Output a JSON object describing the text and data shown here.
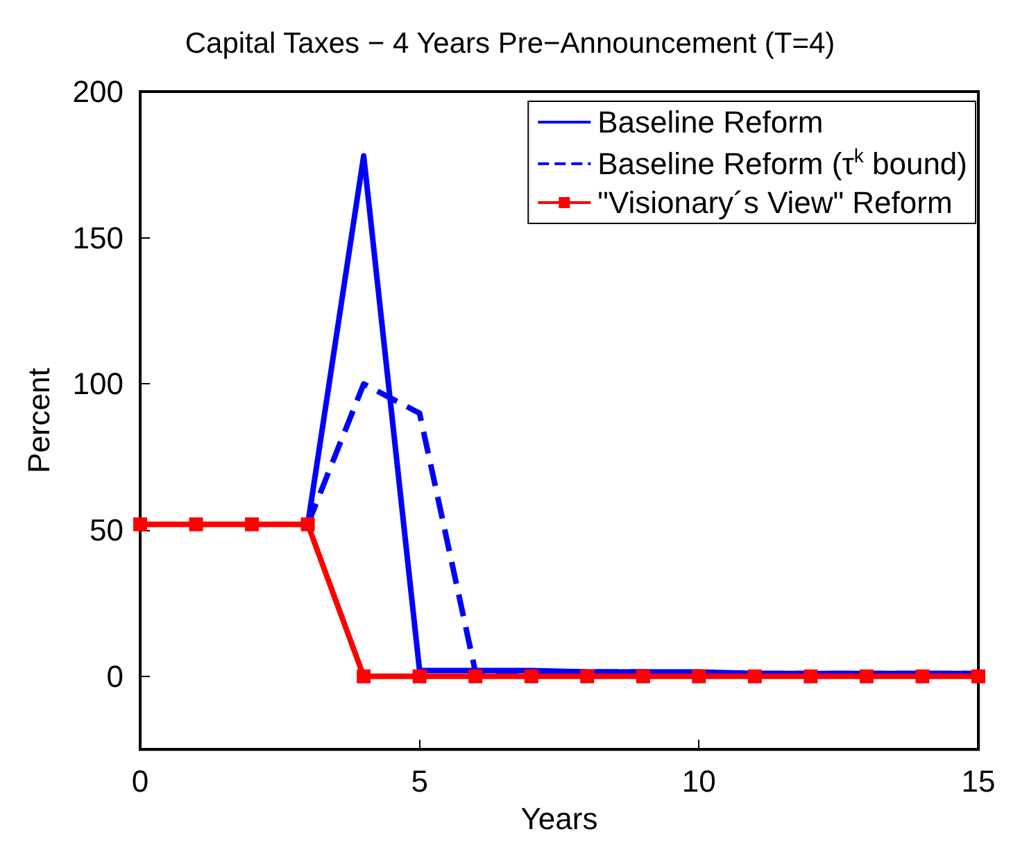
{
  "chart_data": {
    "type": "line",
    "title": "Capital Taxes − 4 Years Pre−Announcement (T=4)",
    "xlabel": "Years",
    "ylabel": "Percent",
    "xlim": [
      0,
      15
    ],
    "ylim": [
      -25,
      200
    ],
    "xticks": [
      0,
      5,
      10,
      15
    ],
    "yticks": [
      0,
      50,
      100,
      150,
      200
    ],
    "grid": false,
    "legend": "top right",
    "x": [
      0,
      1,
      2,
      3,
      4,
      5,
      6,
      7,
      8,
      9,
      10,
      11,
      12,
      13,
      14,
      15
    ],
    "series": [
      {
        "name": "Baseline Reform",
        "color": "#0000ff",
        "line_style": "solid",
        "marker": "none",
        "values": [
          null,
          null,
          null,
          52,
          178,
          2,
          2,
          2,
          1.5,
          1.5,
          1.5,
          1,
          1,
          1,
          1,
          1
        ]
      },
      {
        "name": "Baseline Reform (τ$^{k}$ bound)",
        "color": "#0000ff",
        "line_style": "dashed",
        "marker": "none",
        "values": [
          null,
          null,
          null,
          52,
          100,
          90,
          1.5,
          1.5,
          1.5,
          1.5,
          1,
          1,
          1,
          1,
          1,
          1
        ]
      },
      {
        "name": "\"Visionary´s View\" Reform",
        "color": "#ff0000",
        "line_style": "solid",
        "marker": "square",
        "values": [
          52,
          52,
          52,
          52,
          0,
          0,
          0,
          0,
          0,
          0,
          0,
          0,
          0,
          0,
          0,
          0
        ]
      }
    ]
  }
}
